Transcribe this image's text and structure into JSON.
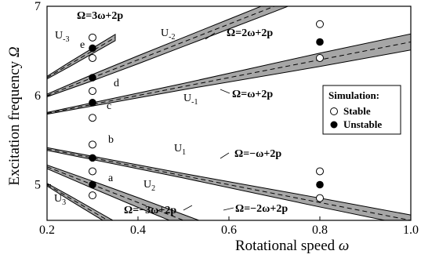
{
  "chart_data": {
    "type": "line",
    "xlabel": "Rotational speed",
    "xlabel_symbol": "ω",
    "ylabel": "Excitation frequency",
    "ylabel_symbol": "Ω",
    "xlim": [
      0.2,
      1.0
    ],
    "ylim": [
      4.6,
      7.0
    ],
    "xticks": [
      "0.2",
      "0.4",
      "0.6",
      "0.8",
      "1.0"
    ],
    "yticks": [
      "5",
      "6",
      "7"
    ],
    "bands": [
      {
        "name": "U1",
        "label_main": "U",
        "label_sub": "1",
        "points": [
          [
            0.2,
            5.4,
            0.03
          ],
          [
            0.5,
            5.1,
            0.05
          ],
          [
            0.8,
            4.8,
            0.1
          ],
          [
            1.0,
            4.6,
            0.12
          ],
          [
            1.08,
            4.52,
            0.14
          ]
        ],
        "line": "Ω=−ω+2p"
      },
      {
        "name": "U-1",
        "label_main": "U",
        "label_sub": "-1",
        "points": [
          [
            0.2,
            5.8,
            0.02
          ],
          [
            0.5,
            6.1,
            0.07
          ],
          [
            0.8,
            6.4,
            0.15
          ],
          [
            1.0,
            6.6,
            0.18
          ],
          [
            1.08,
            6.68,
            0.19
          ]
        ],
        "line": "Ω=ω+2p"
      },
      {
        "name": "U2",
        "label_main": "U",
        "label_sub": "2",
        "points": [
          [
            0.2,
            5.2,
            0.04
          ],
          [
            0.3,
            5.0,
            0.08
          ],
          [
            0.4,
            4.8,
            0.11
          ],
          [
            0.5,
            4.6,
            0.13
          ],
          [
            0.6,
            4.4,
            0.15
          ]
        ],
        "line": "Ω=−2ω+2p"
      },
      {
        "name": "U-2",
        "label_main": "U",
        "label_sub": "-2",
        "points": [
          [
            0.2,
            6.0,
            0.03
          ],
          [
            0.3,
            6.2,
            0.07
          ],
          [
            0.4,
            6.4,
            0.09
          ],
          [
            0.5,
            6.6,
            0.1
          ],
          [
            0.6,
            6.8,
            0.11
          ],
          [
            0.7,
            7.0,
            0.12
          ],
          [
            0.75,
            7.1,
            0.12
          ]
        ],
        "line": "Ω=2ω+2p"
      },
      {
        "name": "U3",
        "label_main": "U",
        "label_sub": "3",
        "points": [
          [
            0.2,
            5.0,
            0.03
          ],
          [
            0.25,
            4.85,
            0.05
          ],
          [
            0.3,
            4.7,
            0.06
          ],
          [
            0.35,
            4.55,
            0.07
          ]
        ],
        "line": "Ω=−3ω+2p"
      },
      {
        "name": "U-3",
        "label_main": "U",
        "label_sub": "-3",
        "points": [
          [
            0.2,
            6.2,
            0.03
          ],
          [
            0.25,
            6.35,
            0.05
          ],
          [
            0.3,
            6.5,
            0.06
          ],
          [
            0.35,
            6.65,
            0.07
          ]
        ],
        "line": "Ω=3ω+2p"
      }
    ],
    "simulation": {
      "stable": [
        [
          0.3,
          6.65
        ],
        [
          0.3,
          6.42
        ],
        [
          0.3,
          6.05
        ],
        [
          0.3,
          5.75
        ],
        [
          0.3,
          5.45
        ],
        [
          0.3,
          5.15
        ],
        [
          0.3,
          4.88
        ],
        [
          0.8,
          6.8
        ],
        [
          0.8,
          6.42
        ],
        [
          0.8,
          5.15
        ],
        [
          0.8,
          4.85
        ]
      ],
      "unstable": [
        [
          0.3,
          6.53
        ],
        [
          0.3,
          6.2
        ],
        [
          0.3,
          5.92
        ],
        [
          0.3,
          5.3
        ],
        [
          0.3,
          5.0
        ],
        [
          0.8,
          6.6
        ],
        [
          0.8,
          5.0
        ]
      ]
    },
    "point_labels": [
      {
        "text": "a",
        "x": 0.3,
        "y": 5.0
      },
      {
        "text": "b",
        "x": 0.3,
        "y": 5.3
      },
      {
        "text": "c",
        "x": 0.3,
        "y": 5.92
      },
      {
        "text": "d",
        "x": 0.3,
        "y": 6.2
      },
      {
        "text": "e",
        "x": 0.3,
        "y": 6.53
      }
    ],
    "equation_labels": [
      "Ω=3ω+2p",
      "Ω=2ω+2p",
      "Ω=ω+2p",
      "Ω=−ω+2p",
      "Ω=−3ω+2p",
      "Ω=−2ω+2p"
    ],
    "legend": {
      "title": "Simulation:",
      "entries": [
        "Stable",
        "Unstable"
      ],
      "placement": "right"
    }
  }
}
